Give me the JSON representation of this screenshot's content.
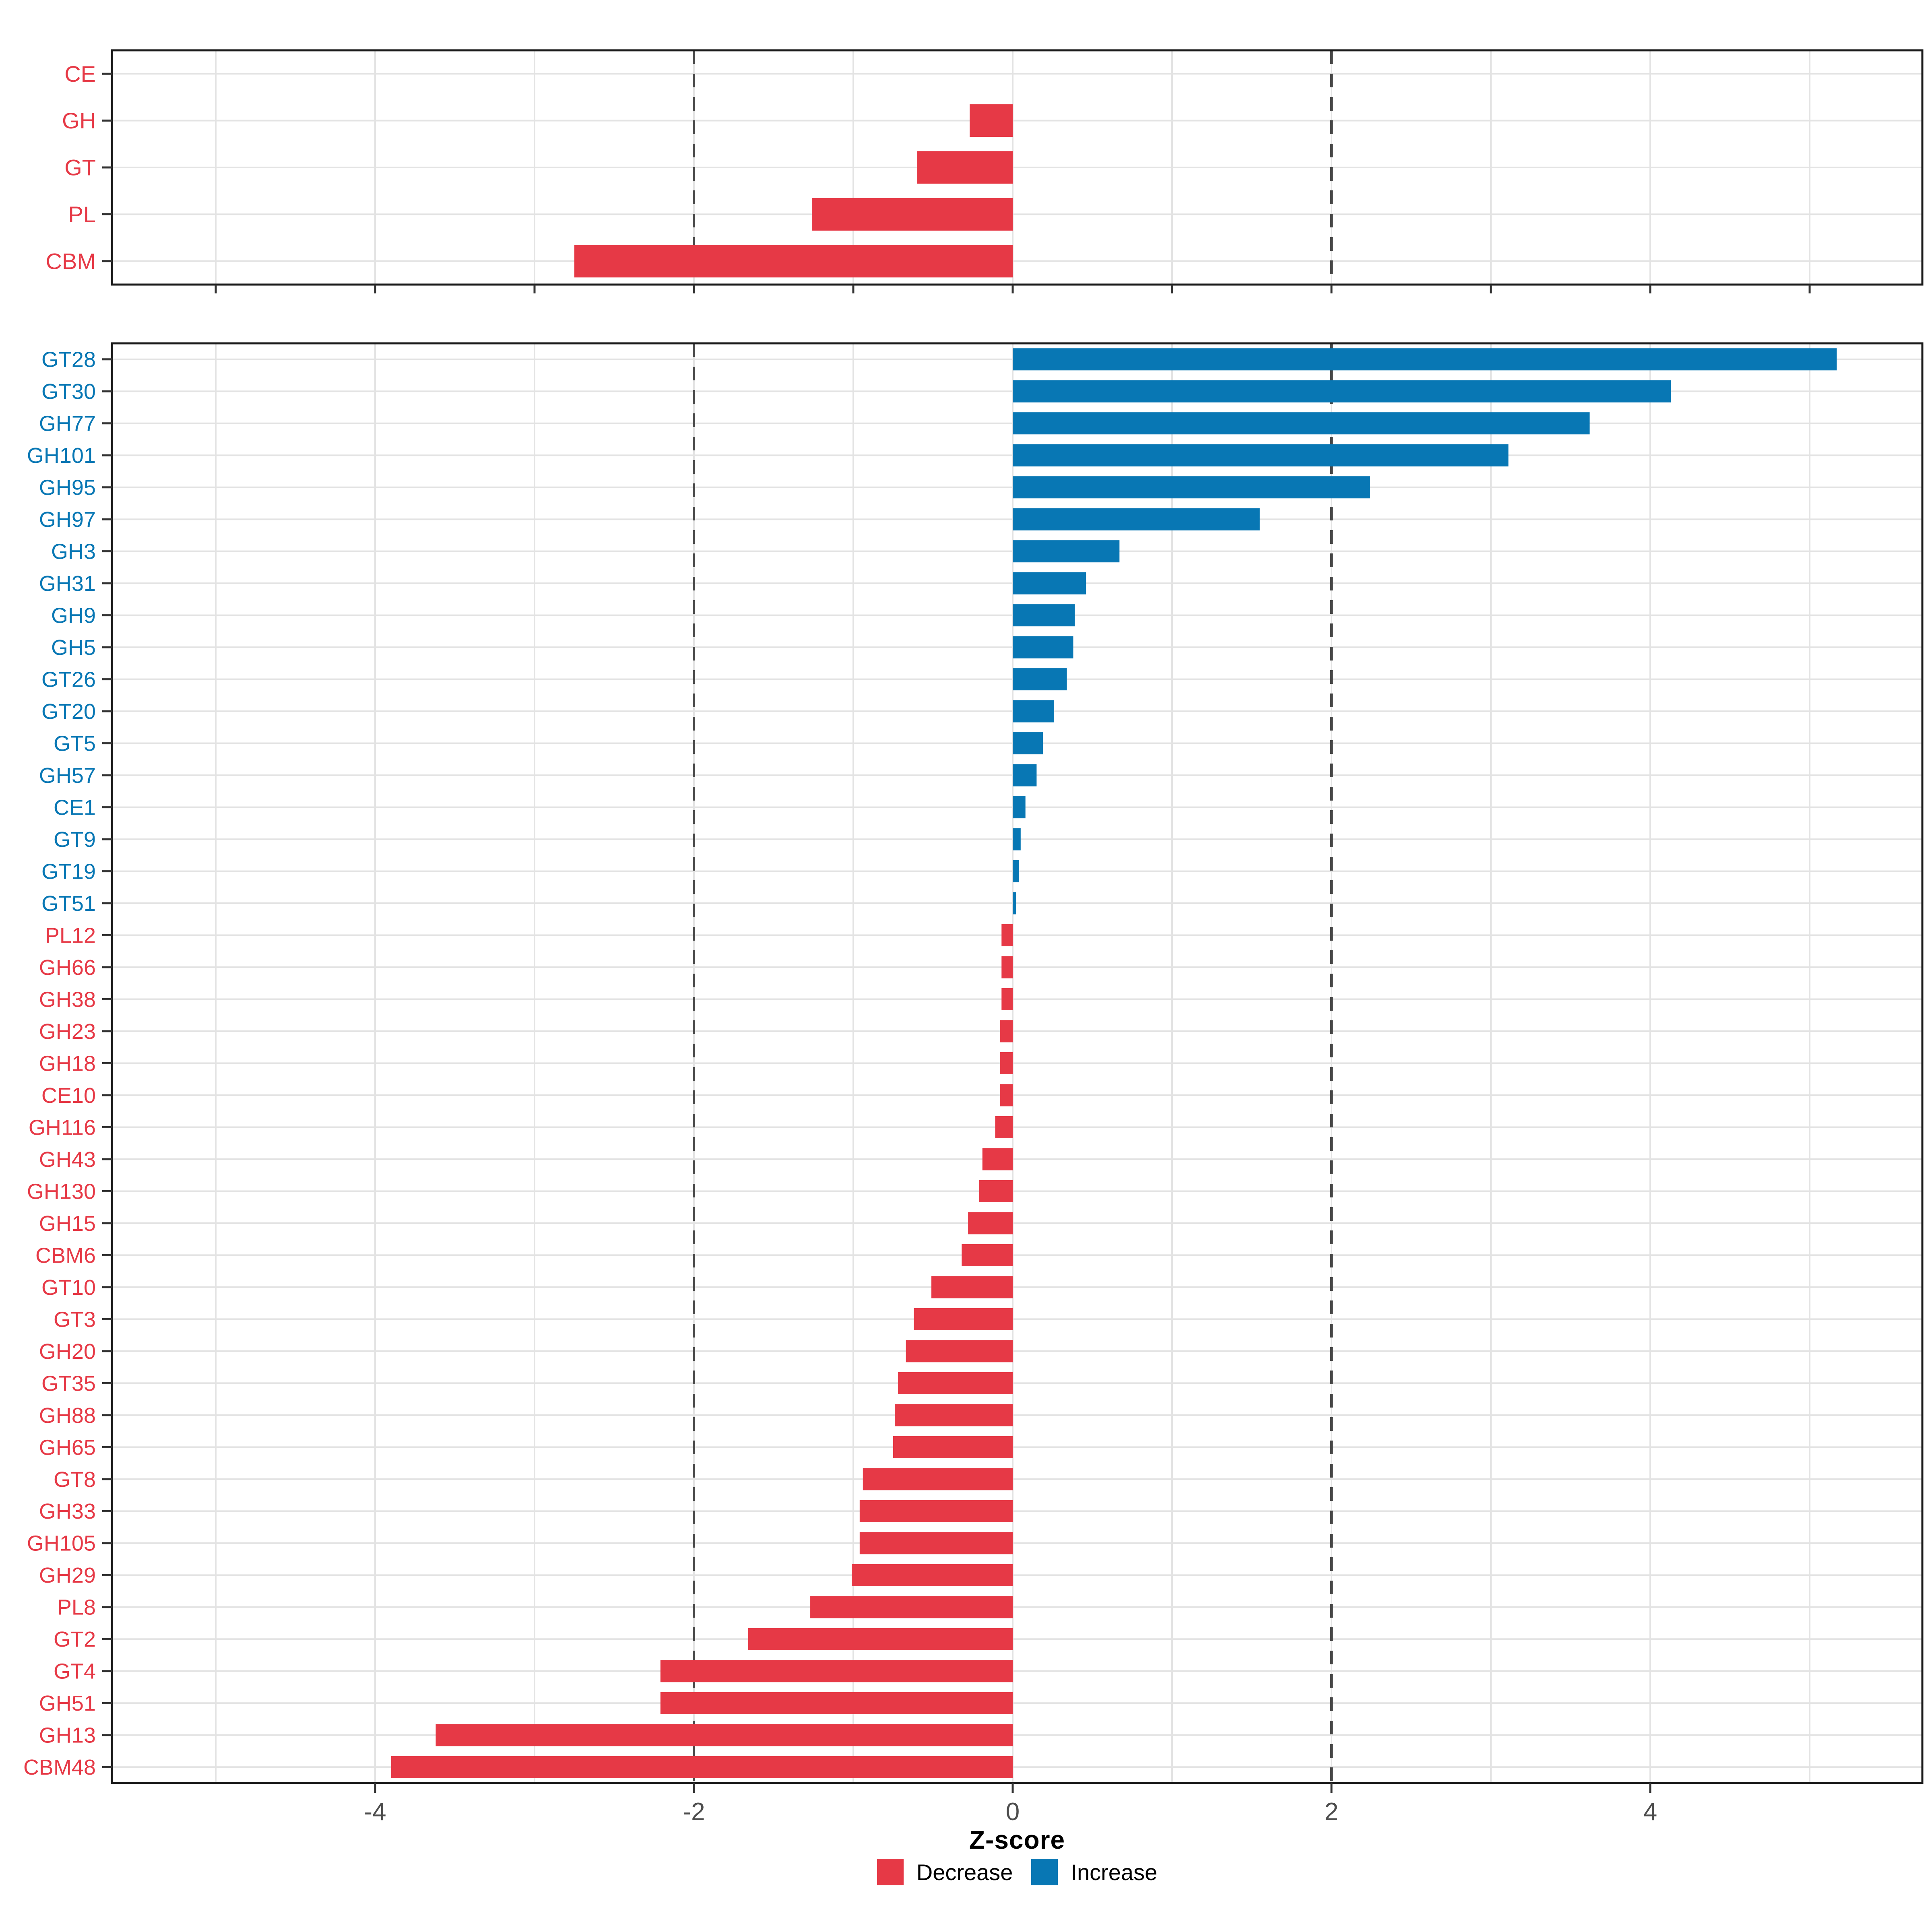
{
  "axis": {
    "title": "Z-score",
    "tick_values": [
      -4,
      -2,
      0,
      2,
      4
    ],
    "tick_labels": [
      "-4",
      "-2",
      "0",
      "2",
      "4"
    ]
  },
  "reference_lines": [
    -2,
    2
  ],
  "legend": {
    "items": [
      {
        "label": "Decrease",
        "color": "#E63946"
      },
      {
        "label": "Increase",
        "color": "#0877B4"
      }
    ]
  },
  "colors": {
    "decrease": "#E63946",
    "increase": "#0877B4",
    "grid": "#E3E3E3",
    "dashed_line": "#474747",
    "panel_border": "#1A1A1A",
    "tick": "#333333",
    "axis_text": "#4D4D4D"
  },
  "chart_data": [
    {
      "type": "bar",
      "orientation": "horizontal",
      "panel": "cazyme-class-summary",
      "xlim": [
        -5.63,
        5.67
      ],
      "grid": true,
      "categories": [
        "CE",
        "GH",
        "GT",
        "PL",
        "CBM"
      ],
      "values": [
        0,
        -0.27,
        -0.6,
        -1.26,
        -2.75
      ]
    },
    {
      "type": "bar",
      "orientation": "horizontal",
      "panel": "cazyme-families",
      "xlim": [
        -5.63,
        5.67
      ],
      "grid": true,
      "xlabel": "Z-score",
      "categories": [
        "GT28",
        "GT30",
        "GH77",
        "GH101",
        "GH95",
        "GH97",
        "GH3",
        "GH31",
        "GH9",
        "GH5",
        "GT26",
        "GT20",
        "GT5",
        "GH57",
        "CE1",
        "GT9",
        "GT19",
        "GT51",
        "PL12",
        "GH66",
        "GH38",
        "GH23",
        "GH18",
        "CE10",
        "GH116",
        "GH43",
        "GH130",
        "GH15",
        "CBM6",
        "GT10",
        "GT3",
        "GH20",
        "GT35",
        "GH88",
        "GH65",
        "GT8",
        "GH33",
        "GH105",
        "GH29",
        "PL8",
        "GT2",
        "GT4",
        "GH51",
        "GH13",
        "CBM48"
      ],
      "values": [
        5.17,
        4.13,
        3.62,
        3.11,
        2.24,
        1.55,
        0.67,
        0.46,
        0.39,
        0.38,
        0.34,
        0.26,
        0.19,
        0.15,
        0.08,
        0.05,
        0.04,
        0.02,
        -0.07,
        -0.07,
        -0.07,
        -0.08,
        -0.08,
        -0.08,
        -0.11,
        -0.19,
        -0.21,
        -0.28,
        -0.32,
        -0.51,
        -0.62,
        -0.67,
        -0.72,
        -0.74,
        -0.75,
        -0.94,
        -0.96,
        -0.96,
        -1.01,
        -1.27,
        -1.66,
        -2.21,
        -2.21,
        -3.62,
        -3.9
      ]
    }
  ]
}
